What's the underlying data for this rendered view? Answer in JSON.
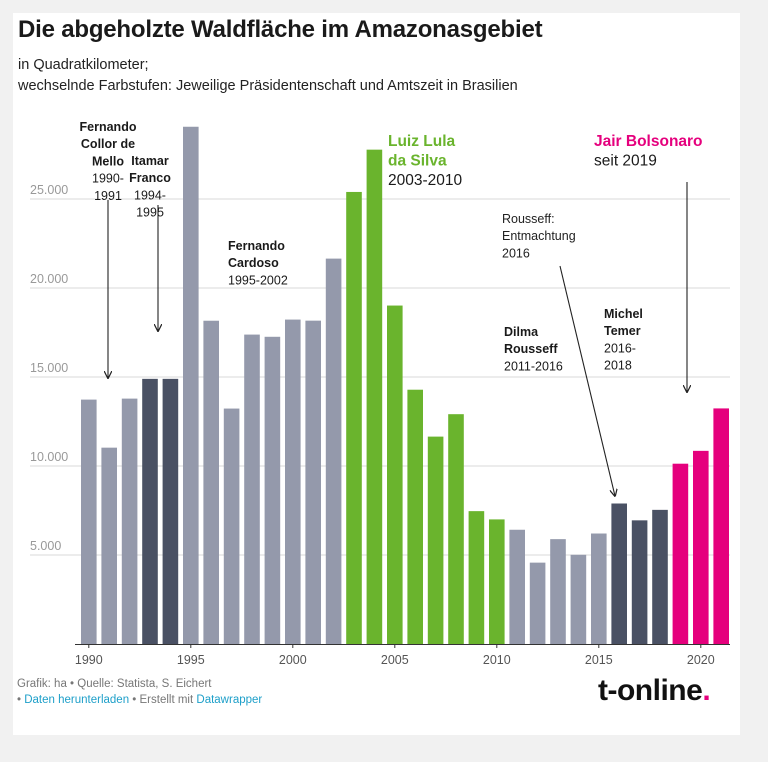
{
  "title": "Die abgeholzte Waldfläche im Amazonasgebiet",
  "subtitle_line1": "in Quadratkilometer;",
  "subtitle_line2": "wechselnde Farbstufen: Jeweilige Präsidentenschaft und Amtszeit in Brasilien",
  "colors": {
    "gray": "#9499ab",
    "dark": "#4a5164",
    "green": "#6ab42d",
    "pink": "#e5007d",
    "grid": "#d8d8d8",
    "axis_text": "#999999"
  },
  "chart_data": {
    "type": "bar",
    "xlim": [
      1989.5,
      2021.5
    ],
    "ylim": [
      0,
      30000
    ],
    "y_ticks": [
      {
        "value": 5000,
        "label": "5.000"
      },
      {
        "value": 10000,
        "label": "10.000"
      },
      {
        "value": 15000,
        "label": "15.000"
      },
      {
        "value": 20000,
        "label": "20.000"
      },
      {
        "value": 25000,
        "label": "25.000"
      }
    ],
    "x_ticks": [
      {
        "value": 1990,
        "label": "1990"
      },
      {
        "value": 1995,
        "label": "1995"
      },
      {
        "value": 2000,
        "label": "2000"
      },
      {
        "value": 2005,
        "label": "2005"
      },
      {
        "value": 2010,
        "label": "2010"
      },
      {
        "value": 2015,
        "label": "2015"
      },
      {
        "value": 2020,
        "label": "2020"
      }
    ],
    "grid": true,
    "bars": [
      {
        "year": 1990,
        "value": 13730,
        "color": "gray"
      },
      {
        "year": 1991,
        "value": 11030,
        "color": "gray"
      },
      {
        "year": 1992,
        "value": 13786,
        "color": "gray"
      },
      {
        "year": 1993,
        "value": 14896,
        "color": "dark"
      },
      {
        "year": 1994,
        "value": 14896,
        "color": "dark"
      },
      {
        "year": 1995,
        "value": 29059,
        "color": "gray"
      },
      {
        "year": 1996,
        "value": 18161,
        "color": "gray"
      },
      {
        "year": 1997,
        "value": 13227,
        "color": "gray"
      },
      {
        "year": 1998,
        "value": 17383,
        "color": "gray"
      },
      {
        "year": 1999,
        "value": 17259,
        "color": "gray"
      },
      {
        "year": 2000,
        "value": 18226,
        "color": "gray"
      },
      {
        "year": 2001,
        "value": 18165,
        "color": "gray"
      },
      {
        "year": 2002,
        "value": 21651,
        "color": "gray"
      },
      {
        "year": 2003,
        "value": 25396,
        "color": "green"
      },
      {
        "year": 2004,
        "value": 27772,
        "color": "green"
      },
      {
        "year": 2005,
        "value": 19014,
        "color": "green"
      },
      {
        "year": 2006,
        "value": 14286,
        "color": "green"
      },
      {
        "year": 2007,
        "value": 11651,
        "color": "green"
      },
      {
        "year": 2008,
        "value": 12911,
        "color": "green"
      },
      {
        "year": 2009,
        "value": 7464,
        "color": "green"
      },
      {
        "year": 2010,
        "value": 7000,
        "color": "green"
      },
      {
        "year": 2011,
        "value": 6418,
        "color": "gray"
      },
      {
        "year": 2012,
        "value": 4571,
        "color": "gray"
      },
      {
        "year": 2013,
        "value": 5891,
        "color": "gray"
      },
      {
        "year": 2014,
        "value": 5012,
        "color": "gray"
      },
      {
        "year": 2015,
        "value": 6207,
        "color": "gray"
      },
      {
        "year": 2016,
        "value": 7893,
        "color": "dark"
      },
      {
        "year": 2017,
        "value": 6947,
        "color": "dark"
      },
      {
        "year": 2018,
        "value": 7536,
        "color": "dark"
      },
      {
        "year": 2019,
        "value": 10129,
        "color": "pink"
      },
      {
        "year": 2020,
        "value": 10851,
        "color": "pink"
      },
      {
        "year": 2021,
        "value": 13235,
        "color": "pink"
      }
    ],
    "annotations": [
      {
        "name": "collor",
        "lines": [
          {
            "text": "Fernando",
            "bold": true
          },
          {
            "text": "Collor de",
            "bold": true
          },
          {
            "text": "Mello",
            "bold": true
          },
          {
            "text": "1990-",
            "bold": false
          },
          {
            "text": "1991",
            "bold": false
          }
        ]
      },
      {
        "name": "franco",
        "lines": [
          {
            "text": "Itamar",
            "bold": true
          },
          {
            "text": "Franco",
            "bold": true
          },
          {
            "text": "1994-",
            "bold": false
          },
          {
            "text": "1995",
            "bold": false
          }
        ]
      },
      {
        "name": "cardoso",
        "lines": [
          {
            "text": "Fernando",
            "bold": true
          },
          {
            "text": "Cardoso",
            "bold": true
          },
          {
            "text": "1995-2002",
            "bold": false
          }
        ]
      },
      {
        "name": "lula",
        "lines": [
          {
            "text": "Luiz Lula",
            "bold": true
          },
          {
            "text": "da Silva",
            "bold": true
          },
          {
            "text": "2003-2010",
            "bold": false
          }
        ]
      },
      {
        "name": "rousseff-impeachment",
        "lines": [
          {
            "text": "Rousseff:",
            "bold": false
          },
          {
            "text": "Entmachtung",
            "bold": false
          },
          {
            "text": "2016",
            "bold": false
          }
        ]
      },
      {
        "name": "dilma",
        "lines": [
          {
            "text": "Dilma",
            "bold": true
          },
          {
            "text": "Rousseff",
            "bold": true
          },
          {
            "text": "2011-2016",
            "bold": false
          }
        ]
      },
      {
        "name": "temer",
        "lines": [
          {
            "text": "Michel",
            "bold": true
          },
          {
            "text": "Temer",
            "bold": true
          },
          {
            "text": "2016-",
            "bold": false
          },
          {
            "text": "2018",
            "bold": false
          }
        ]
      },
      {
        "name": "bolsonaro",
        "lines": [
          {
            "text": "Jair Bolsonaro",
            "bold": true
          },
          {
            "text": "seit 2019",
            "bold": false
          }
        ]
      }
    ]
  },
  "footer": {
    "source_text": "Grafik: ha • Quelle: Statista, S. Eichert",
    "download_link": "Daten herunterladen",
    "separator": " • Erstellt mit ",
    "datawrapper_link": "Datawrapper"
  },
  "logo": {
    "text": "t-online",
    "dot": "."
  }
}
